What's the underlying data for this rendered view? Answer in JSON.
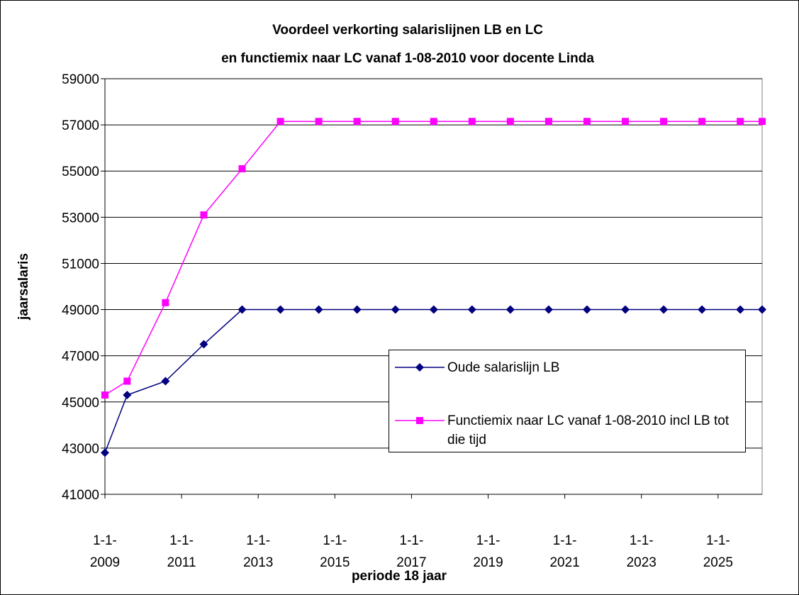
{
  "chart_data": {
    "type": "line",
    "title": [
      "Voordeel verkorting salarislijnen LB en LC",
      "en functiemix naar LC vanaf 1-08-2010 voor docente  Linda"
    ],
    "x_label": "periode 18 jaar",
    "y_label": "jaarsalaris",
    "x": [
      2009,
      2009.58,
      2010.58,
      2011.58,
      2012.58,
      2013.58,
      2014.58,
      2015.58,
      2016.58,
      2017.58,
      2018.58,
      2019.58,
      2020.58,
      2021.58,
      2022.58,
      2023.58,
      2024.58,
      2025.58,
      2026.15
    ],
    "series": [
      {
        "name": "Oude salarislijn LB",
        "color": "#000080",
        "marker": "diamond",
        "values": [
          42800,
          45300,
          45900,
          47500,
          49000,
          49000,
          49000,
          49000,
          49000,
          49000,
          49000,
          49000,
          49000,
          49000,
          49000,
          49000,
          49000,
          49000,
          49000
        ]
      },
      {
        "name": "Functiemix naar LC vanaf 1-08-2010 incl LB tot die tijd",
        "color": "#ff00ff",
        "marker": "square",
        "values": [
          45300,
          45900,
          49300,
          53100,
          55100,
          57150,
          57150,
          57150,
          57150,
          57150,
          57150,
          57150,
          57150,
          57150,
          57150,
          57150,
          57150,
          57150,
          57150
        ]
      }
    ],
    "xlim": [
      2009,
      2026.15
    ],
    "xticks": [
      {
        "value": 2009,
        "label": "1-1-2009"
      },
      {
        "value": 2011,
        "label": "1-1-2011"
      },
      {
        "value": 2013,
        "label": "1-1-2013"
      },
      {
        "value": 2015,
        "label": "1-1-2015"
      },
      {
        "value": 2017,
        "label": "1-1-2017"
      },
      {
        "value": 2019,
        "label": "1-1-2019"
      },
      {
        "value": 2021,
        "label": "1-1-2021"
      },
      {
        "value": 2023,
        "label": "1-1-2023"
      },
      {
        "value": 2025,
        "label": "1-1-2025"
      }
    ],
    "ylim": [
      41000,
      59000
    ],
    "yticks": [
      41000,
      43000,
      45000,
      47000,
      49000,
      51000,
      53000,
      55000,
      57000,
      59000
    ],
    "grid": true,
    "legend": "right"
  }
}
